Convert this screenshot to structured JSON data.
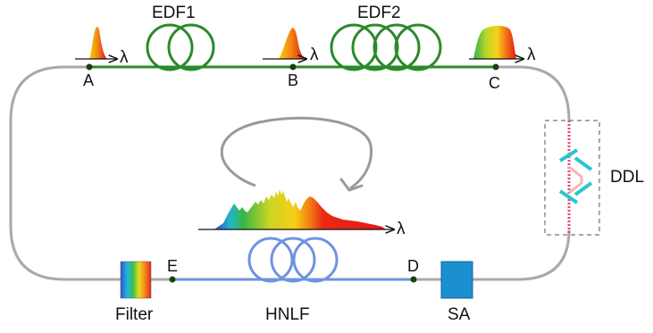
{
  "colors": {
    "ring": "#a9a9a9",
    "edf": "#2b8a2b",
    "hnlf": "#6f93e0",
    "ddl_pink": "#f2b6b6",
    "ddl_mirror": "#27c6cf",
    "sa": "#1b8fd0",
    "node": "#1e3d10"
  },
  "components": {
    "edf1": "EDF1",
    "edf2": "EDF2",
    "ddl": "DDL",
    "filter": "Filter",
    "hnlf": "HNLF",
    "sa": "SA"
  },
  "nodes": {
    "a": "A",
    "b": "B",
    "c": "C",
    "d": "D",
    "e": "E"
  },
  "axis_symbol": "λ"
}
